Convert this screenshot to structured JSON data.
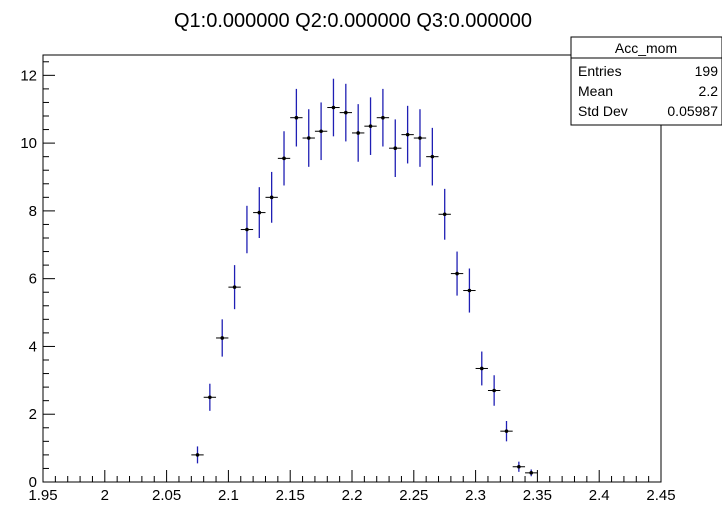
{
  "chart_data": {
    "type": "scatter",
    "title": "Q1:0.000000 Q2:0.000000 Q3:0.000000",
    "xlabel": "",
    "ylabel": "",
    "xlim": [
      1.95,
      2.45
    ],
    "ylim": [
      0,
      12.6
    ],
    "bin_width": 0.01,
    "x_ticks": [
      "1.95",
      "2",
      "2.05",
      "2.1",
      "2.15",
      "2.2",
      "2.25",
      "2.3",
      "2.35",
      "2.4",
      "2.45"
    ],
    "y_ticks": [
      "0",
      "2",
      "4",
      "6",
      "8",
      "10",
      "12"
    ],
    "grid": false,
    "marker_color": "#000000",
    "error_bar_color": "#1f1fb4",
    "series": [
      {
        "x": [
          2.075,
          2.085,
          2.095,
          2.105,
          2.115,
          2.125,
          2.135,
          2.145,
          2.155,
          2.165,
          2.175,
          2.185,
          2.195,
          2.205,
          2.215,
          2.225,
          2.235,
          2.245,
          2.255,
          2.265,
          2.275,
          2.285,
          2.295,
          2.305,
          2.315,
          2.325,
          2.335,
          2.345
        ],
        "y": [
          0.8,
          2.5,
          4.25,
          5.75,
          7.45,
          7.95,
          8.4,
          9.55,
          10.75,
          10.15,
          10.35,
          11.05,
          10.9,
          10.3,
          10.5,
          10.75,
          9.85,
          10.25,
          10.15,
          9.6,
          7.9,
          6.15,
          5.65,
          3.35,
          2.7,
          1.5,
          0.45,
          0.27
        ],
        "yerr": [
          0.25,
          0.4,
          0.55,
          0.65,
          0.7,
          0.75,
          0.75,
          0.8,
          0.85,
          0.85,
          0.85,
          0.85,
          0.85,
          0.85,
          0.85,
          0.85,
          0.85,
          0.85,
          0.85,
          0.85,
          0.75,
          0.65,
          0.65,
          0.5,
          0.45,
          0.3,
          0.15,
          0.1
        ]
      }
    ],
    "stats_box": {
      "title": "Acc_mom",
      "rows": [
        {
          "label": "Entries",
          "value": "199"
        },
        {
          "label": "Mean",
          "value": "2.2"
        },
        {
          "label": "Std Dev",
          "value": "0.05987"
        }
      ]
    }
  }
}
